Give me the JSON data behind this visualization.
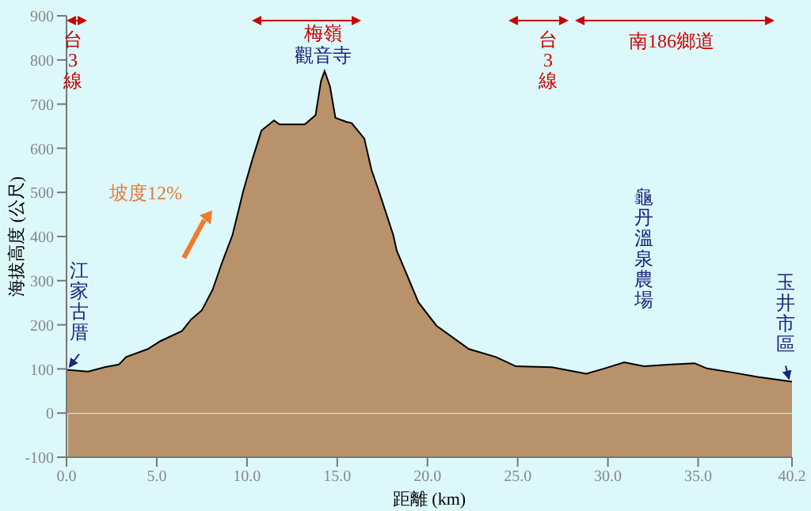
{
  "chart_data": {
    "type": "area",
    "xlabel": "距離 (km)",
    "ylabel": "海拔高度 (公尺)",
    "series": [
      {
        "color": "#b8926a",
        "x": [
          0,
          1.2,
          2.1,
          2.9,
          3.3,
          4.5,
          5.2,
          6.4,
          6.9,
          7.5,
          8.1,
          8.6,
          9.2,
          9.8,
          10.3,
          10.8,
          11.5,
          11.8,
          13.2,
          13.8,
          14.1,
          14.3,
          14.6,
          14.9,
          15.5,
          15.8,
          16.5,
          16.9,
          17.3,
          18.1,
          18.3,
          19.5,
          20.5,
          22.3,
          23.8,
          24.9,
          26.9,
          28.8,
          29.8,
          30.9,
          32.0,
          33.5,
          34.8,
          35.5,
          36.9,
          38.3,
          40.2
        ],
        "values": [
          98,
          94,
          104,
          110,
          127,
          145,
          163,
          186,
          212,
          233,
          280,
          339,
          404,
          504,
          575,
          640,
          663,
          654,
          654,
          675,
          752,
          775,
          740,
          669,
          660,
          657,
          622,
          551,
          504,
          404,
          368,
          251,
          198,
          145,
          127,
          106,
          104,
          89,
          101,
          115,
          106,
          110,
          113,
          101,
          92,
          82,
          71
        ]
      }
    ],
    "xlim": [
      0,
      40.2
    ],
    "xticks": [
      {
        "value": 0,
        "label": "0.0"
      },
      {
        "value": 5,
        "label": "5.0"
      },
      {
        "value": 10,
        "label": "10.0"
      },
      {
        "value": 15,
        "label": "15.0"
      },
      {
        "value": 20,
        "label": "20.0"
      },
      {
        "value": 25,
        "label": "25.0"
      },
      {
        "value": 30,
        "label": "30.0"
      },
      {
        "value": 35,
        "label": "35.0"
      },
      {
        "value": 40.2,
        "label": "40.2"
      }
    ],
    "ylim": [
      -100,
      900
    ],
    "yticks": [
      -100,
      0,
      100,
      200,
      300,
      400,
      500,
      600,
      700,
      800,
      900
    ],
    "annotations": [
      "台3線",
      "梅嶺",
      "觀音寺",
      "台3線",
      "南186鄉道",
      "坡度12%",
      {
        "text": "江家古厝",
        "x": 0,
        "y": 98
      },
      {
        "text": "龜丹溫泉農場",
        "x": 32.0,
        "y": 106
      },
      {
        "text": "玉井市區",
        "x": 40.2,
        "y": 71
      }
    ]
  }
}
